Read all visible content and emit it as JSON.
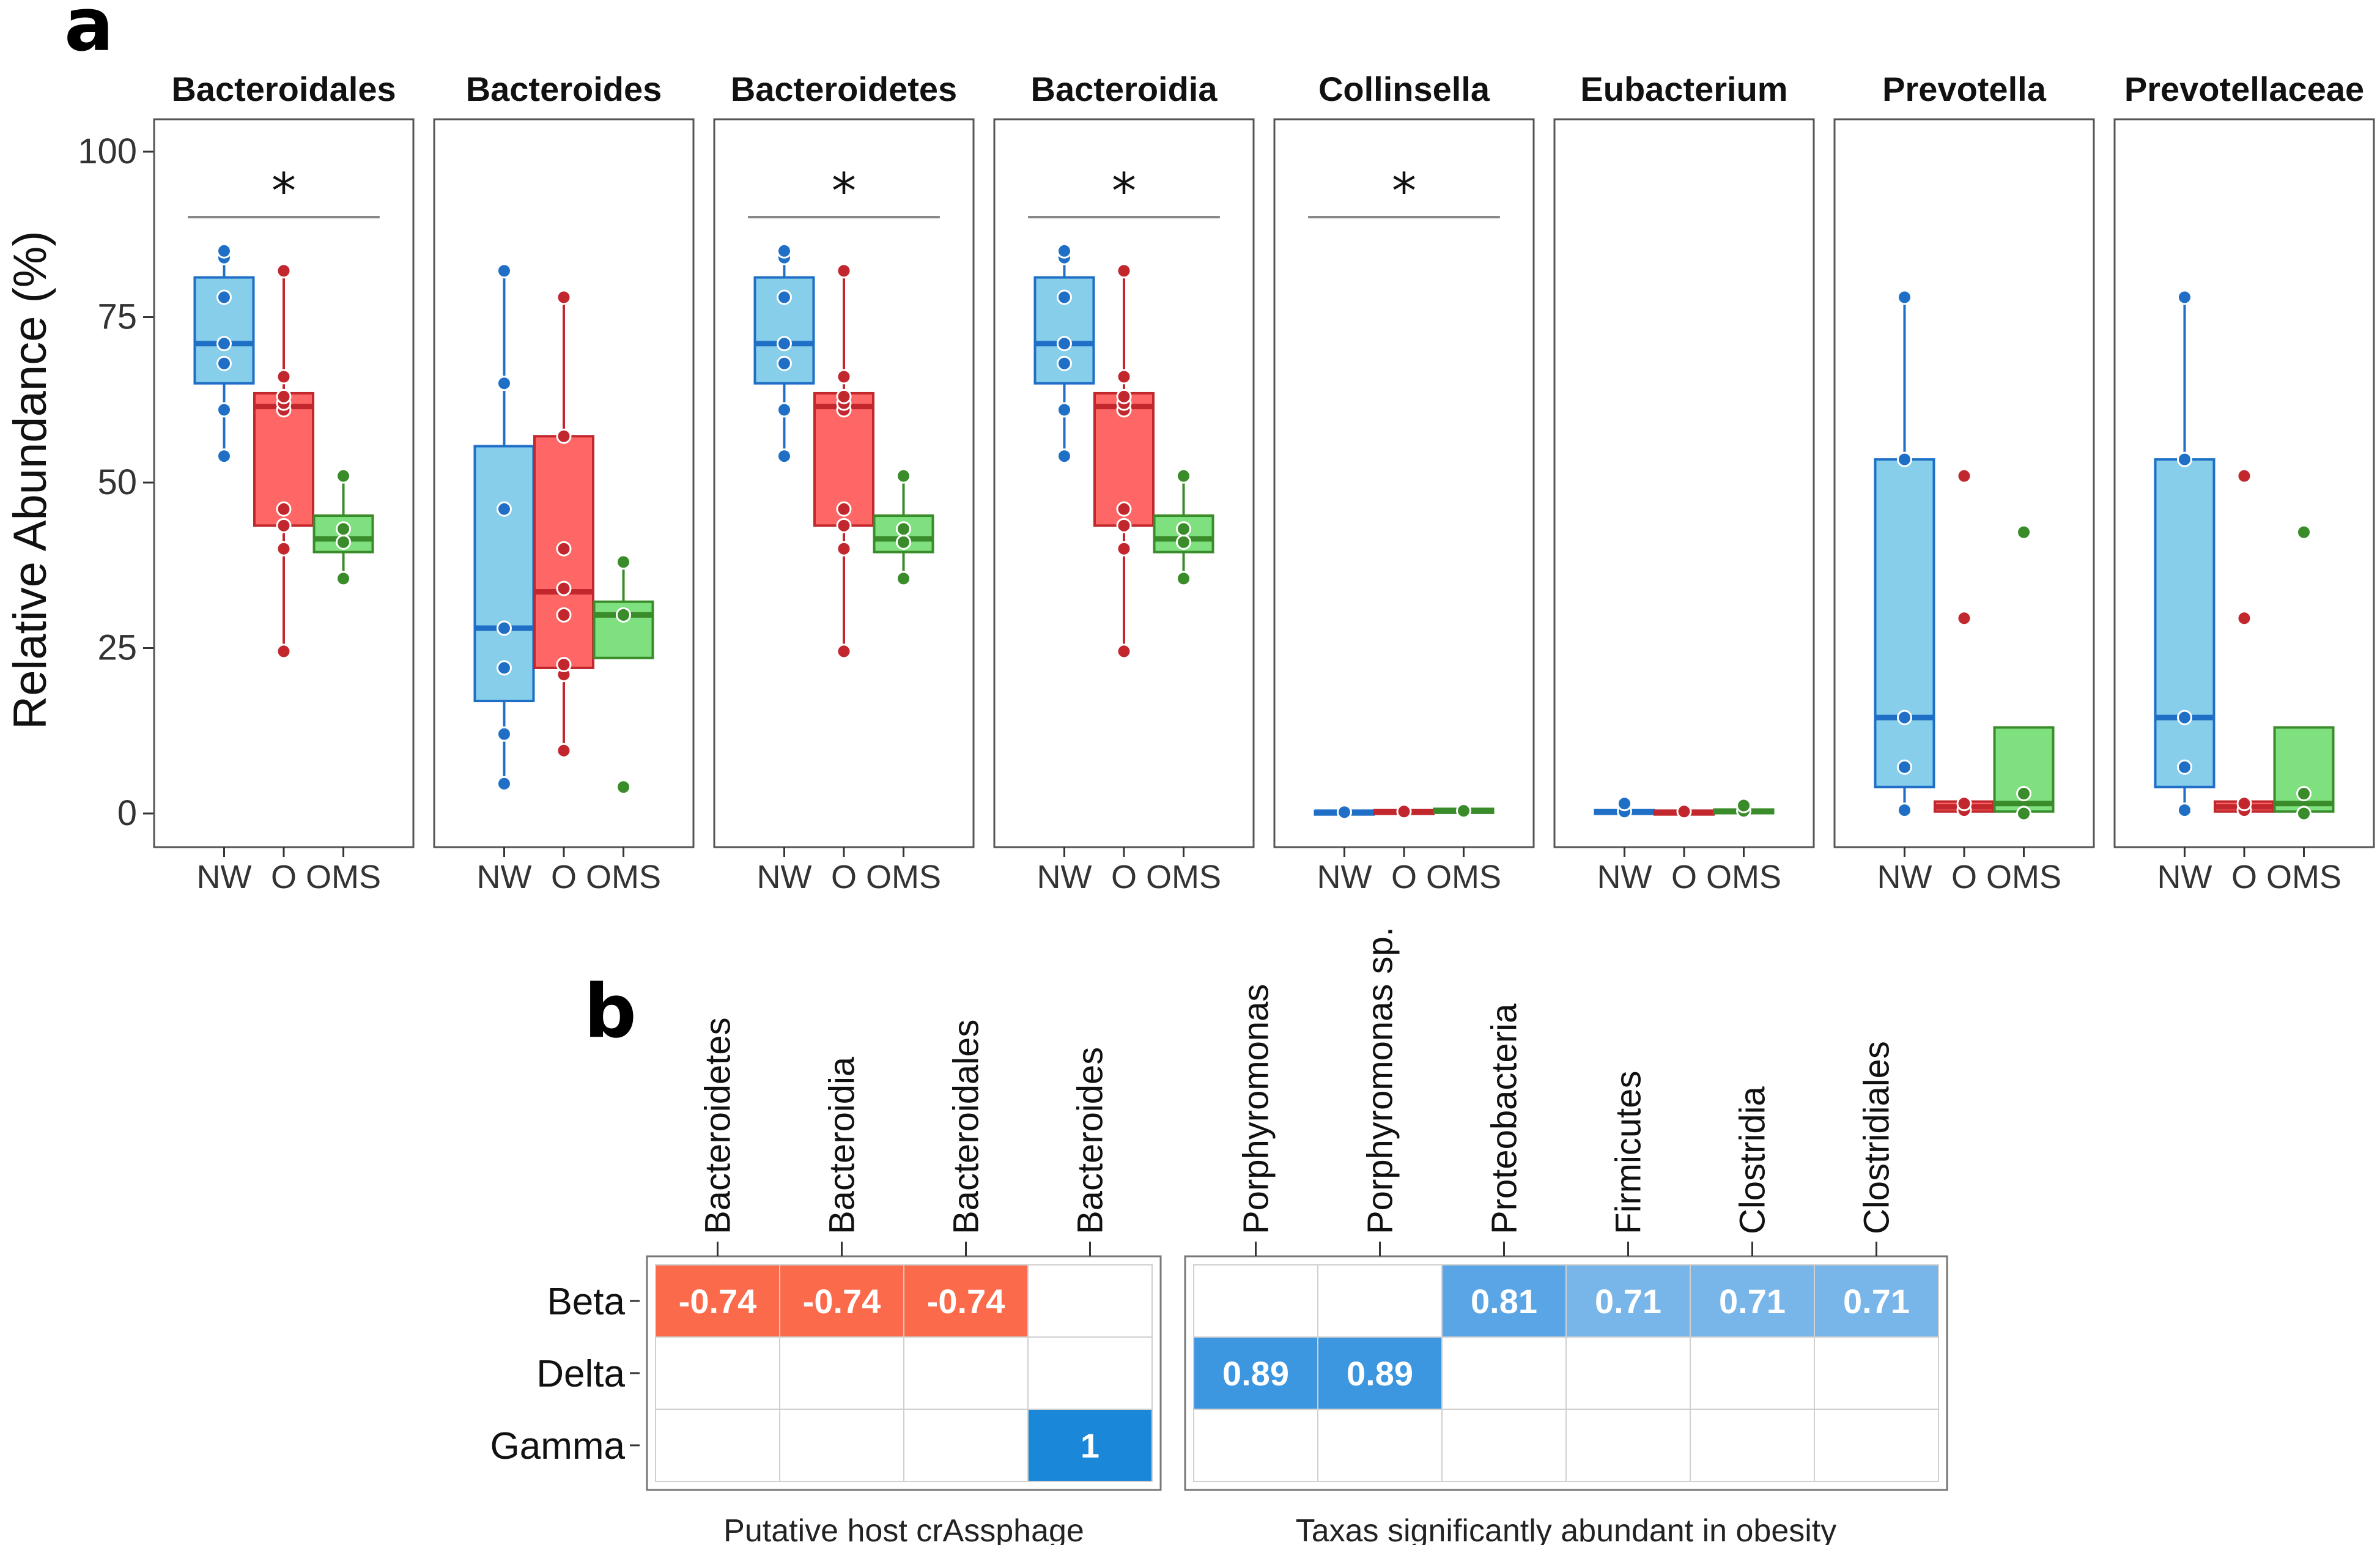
{
  "labels": {
    "panel_a": "a",
    "panel_b": "b"
  },
  "chart_data": [
    {
      "type": "box",
      "ylabel": "Relative Abundance (%)",
      "ylim": [
        0,
        100
      ],
      "yticks": [
        0,
        25,
        50,
        75,
        100
      ],
      "groups": [
        "NW",
        "O",
        "OMS"
      ],
      "colors": {
        "NW": {
          "fill": "#87ceeb",
          "line": "#1f6fc6"
        },
        "O": {
          "fill": "#ff6666",
          "line": "#c1272d"
        },
        "OMS": {
          "fill": "#7fe07f",
          "line": "#3a8c2a"
        }
      },
      "significance_mark": "*",
      "panels": [
        {
          "title": "Bacteroidales",
          "sig": true,
          "boxes": [
            {
              "q1": 65,
              "med": 71,
              "q3": 81,
              "lo": 54,
              "hi": 85,
              "pts": [
                54,
                61,
                68,
                71,
                78,
                84,
                85
              ]
            },
            {
              "q1": 43.5,
              "med": 61.5,
              "q3": 63.5,
              "lo": 24.5,
              "hi": 82,
              "pts": [
                24.5,
                40,
                43.5,
                46,
                61,
                62,
                63,
                66,
                82
              ]
            },
            {
              "q1": 39.5,
              "med": 41.5,
              "q3": 45,
              "lo": 35.5,
              "hi": 51,
              "pts": [
                35.5,
                41,
                43,
                51
              ]
            }
          ]
        },
        {
          "title": "Bacteroides",
          "sig": false,
          "boxes": [
            {
              "q1": 17,
              "med": 28,
              "q3": 55.5,
              "lo": 4.5,
              "hi": 82,
              "pts": [
                4.5,
                12,
                22,
                28,
                46,
                65,
                82
              ]
            },
            {
              "q1": 22,
              "med": 33.5,
              "q3": 57,
              "lo": 9.5,
              "hi": 78,
              "pts": [
                9.5,
                21,
                22.5,
                30,
                34,
                40,
                57,
                78
              ]
            },
            {
              "q1": 23.5,
              "med": 30,
              "q3": 32,
              "lo": 23.5,
              "hi": 38,
              "pts": [
                4,
                30,
                38
              ]
            }
          ]
        },
        {
          "title": "Bacteroidetes",
          "sig": true,
          "boxes": [
            {
              "q1": 65,
              "med": 71,
              "q3": 81,
              "lo": 54,
              "hi": 85,
              "pts": [
                54,
                61,
                68,
                71,
                78,
                84,
                85
              ]
            },
            {
              "q1": 43.5,
              "med": 61.5,
              "q3": 63.5,
              "lo": 24.5,
              "hi": 82,
              "pts": [
                24.5,
                40,
                43.5,
                46,
                61,
                62,
                63,
                66,
                82
              ]
            },
            {
              "q1": 39.5,
              "med": 41.5,
              "q3": 45,
              "lo": 35.5,
              "hi": 51,
              "pts": [
                35.5,
                41,
                43,
                51
              ]
            }
          ]
        },
        {
          "title": "Bacteroidia",
          "sig": true,
          "boxes": [
            {
              "q1": 65,
              "med": 71,
              "q3": 81,
              "lo": 54,
              "hi": 85,
              "pts": [
                54,
                61,
                68,
                71,
                78,
                84,
                85
              ]
            },
            {
              "q1": 43.5,
              "med": 61.5,
              "q3": 63.5,
              "lo": 24.5,
              "hi": 82,
              "pts": [
                24.5,
                40,
                43.5,
                46,
                61,
                62,
                63,
                66,
                82
              ]
            },
            {
              "q1": 39.5,
              "med": 41.5,
              "q3": 45,
              "lo": 35.5,
              "hi": 51,
              "pts": [
                35.5,
                41,
                43,
                51
              ]
            }
          ]
        },
        {
          "title": "Collinsella",
          "sig": true,
          "boxes": [
            {
              "q1": 0,
              "med": 0.2,
              "q3": 0.4,
              "lo": 0,
              "hi": 0.6,
              "pts": [
                0.2
              ]
            },
            {
              "q1": 0,
              "med": 0.2,
              "q3": 0.5,
              "lo": 0,
              "hi": 0.6,
              "pts": [
                0.3
              ]
            },
            {
              "q1": 0.1,
              "med": 0.4,
              "q3": 0.7,
              "lo": 0,
              "hi": 0.9,
              "pts": [
                0.4
              ]
            }
          ]
        },
        {
          "title": "Eubacterium",
          "sig": false,
          "boxes": [
            {
              "q1": 0,
              "med": 0.2,
              "q3": 0.5,
              "lo": 0,
              "hi": 1.5,
              "pts": [
                0.3,
                1.5
              ]
            },
            {
              "q1": 0,
              "med": 0.2,
              "q3": 0.4,
              "lo": 0,
              "hi": 0.6,
              "pts": [
                0.3
              ]
            },
            {
              "q1": 0.1,
              "med": 0.3,
              "q3": 0.6,
              "lo": 0,
              "hi": 1.2,
              "pts": [
                0.4,
                1.2
              ]
            }
          ]
        },
        {
          "title": "Prevotella",
          "sig": false,
          "boxes": [
            {
              "q1": 4,
              "med": 14.5,
              "q3": 53.5,
              "lo": 0.5,
              "hi": 78,
              "pts": [
                0.5,
                7,
                14.5,
                53.5,
                78
              ]
            },
            {
              "q1": 0.3,
              "med": 1,
              "q3": 1.8,
              "lo": 0,
              "hi": 2.5,
              "pts": [
                0.5,
                1.5,
                29.5,
                51
              ]
            },
            {
              "q1": 0.3,
              "med": 1.5,
              "q3": 13,
              "lo": 0,
              "hi": 13,
              "pts": [
                0,
                3,
                42.5
              ]
            }
          ]
        },
        {
          "title": "Prevotellaceae",
          "sig": false,
          "boxes": [
            {
              "q1": 4,
              "med": 14.5,
              "q3": 53.5,
              "lo": 0.5,
              "hi": 78,
              "pts": [
                0.5,
                7,
                14.5,
                53.5,
                78
              ]
            },
            {
              "q1": 0.3,
              "med": 1,
              "q3": 1.8,
              "lo": 0,
              "hi": 2.5,
              "pts": [
                0.5,
                1.5,
                29.5,
                51
              ]
            },
            {
              "q1": 0.3,
              "med": 1.5,
              "q3": 13,
              "lo": 0,
              "hi": 13,
              "pts": [
                0,
                3,
                42.5
              ]
            }
          ]
        }
      ]
    },
    {
      "type": "heatmap",
      "rows": [
        "Beta",
        "Delta",
        "Gamma"
      ],
      "negative_color": "#fb6a4a",
      "positive_color": "#1a87d8",
      "blocks": [
        {
          "caption": "Putative host crAssphage",
          "columns": [
            "Bacteroidetes",
            "Bacteroidia",
            "Bacteroidales",
            "Bacteroides"
          ],
          "values": [
            [
              -0.74,
              -0.74,
              -0.74,
              null
            ],
            [
              null,
              null,
              null,
              null
            ],
            [
              null,
              null,
              null,
              1
            ]
          ]
        },
        {
          "caption": "Taxas significantly abundant in obesity",
          "columns": [
            "Porphyromonas",
            "Porphyromonas sp.",
            "Proteobacteria",
            "Firmicutes",
            "Clostridia",
            "Clostridiales"
          ],
          "values": [
            [
              null,
              null,
              0.81,
              0.71,
              0.71,
              0.71
            ],
            [
              0.89,
              0.89,
              null,
              null,
              null,
              null
            ],
            [
              null,
              null,
              null,
              null,
              null,
              null
            ]
          ]
        }
      ]
    }
  ]
}
